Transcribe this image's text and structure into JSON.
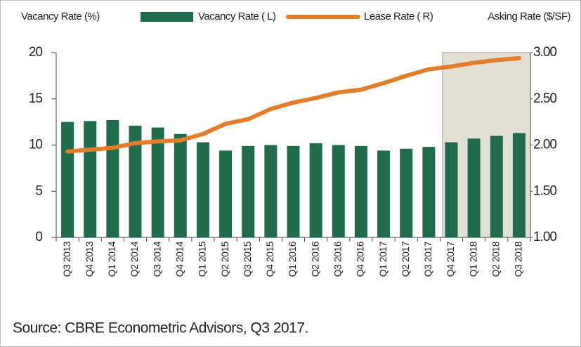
{
  "chart_data": {
    "type": "bar_line",
    "y_label": "Vacancy Rate (%)",
    "y2_label": "Asking Rate ($/SF)",
    "source": "Source: CBRE Econometric Advisors, Q3 2017.",
    "categories": [
      "Q3 2013",
      "Q4 2013",
      "Q1 2014",
      "Q2 2014",
      "Q3 2014",
      "Q4 2014",
      "Q1 2015",
      "Q2 2015",
      "Q3 2015",
      "Q4 2015",
      "Q1 2016",
      "Q2 2016",
      "Q3 2016",
      "Q4 2016",
      "Q1 2017",
      "Q2 2017",
      "Q3 2017",
      "Q4 2017",
      "Q1 2018",
      "Q2 2018",
      "Q3 2018"
    ],
    "series": [
      {
        "name": "Vacancy Rate ( L)",
        "color": "#1f6b4b",
        "kind": "bar",
        "values": [
          12.5,
          12.6,
          12.7,
          12.1,
          11.9,
          11.2,
          10.3,
          9.4,
          9.9,
          10.0,
          9.9,
          10.2,
          10.0,
          9.9,
          9.4,
          9.6,
          9.8,
          10.3,
          10.7,
          11.0,
          11.3
        ]
      },
      {
        "name": "Lease Rate ( R)",
        "color": "#e27d2c",
        "kind": "line",
        "axis": "y2",
        "values": [
          1.93,
          1.95,
          1.97,
          2.02,
          2.04,
          2.05,
          2.12,
          2.23,
          2.28,
          2.39,
          2.46,
          2.51,
          2.57,
          2.6,
          2.67,
          2.75,
          2.82,
          2.85,
          2.89,
          2.92,
          2.94
        ]
      }
    ],
    "ylim": [
      0,
      20
    ],
    "yticks": [
      0,
      5,
      10,
      15,
      20
    ],
    "y2lim": [
      1,
      3
    ],
    "y2ticks": [
      {
        "value": 1,
        "label": "1.00"
      },
      {
        "value": 1.5,
        "label": "1.50"
      },
      {
        "value": 2,
        "label": "2.00"
      },
      {
        "value": 2.5,
        "label": "2.50"
      },
      {
        "value": 3,
        "label": "3.00"
      }
    ]
  }
}
